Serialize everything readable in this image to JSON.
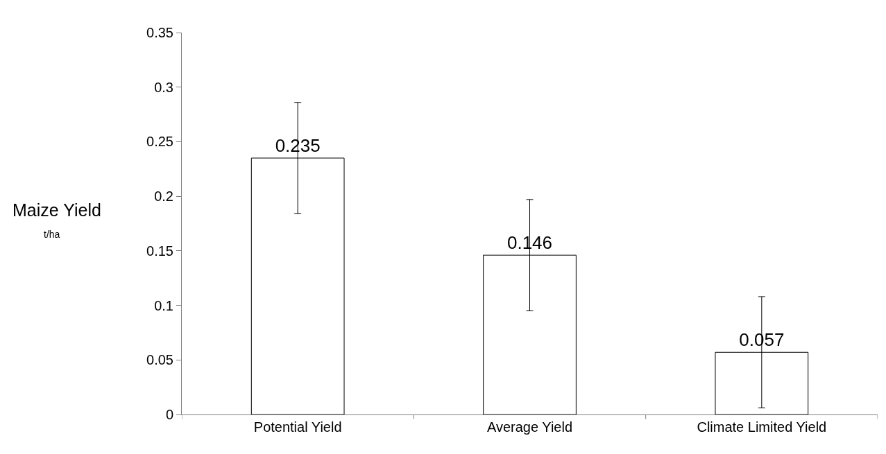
{
  "chart_data": {
    "type": "bar",
    "categories": [
      "Potential Yield",
      "Average Yield",
      "Climate Limited Yield"
    ],
    "values": [
      0.235,
      0.146,
      0.057
    ],
    "errors": [
      0.051,
      0.051,
      0.051
    ],
    "color": "#ffffff",
    "data_labels": true,
    "ylabel": "Maize Yield",
    "annotations": [
      "t/ha"
    ],
    "ylim": [
      0,
      0.35
    ],
    "yticks": [
      0,
      0.05,
      0.1,
      0.15,
      0.2,
      0.25,
      0.3,
      0.35
    ]
  }
}
